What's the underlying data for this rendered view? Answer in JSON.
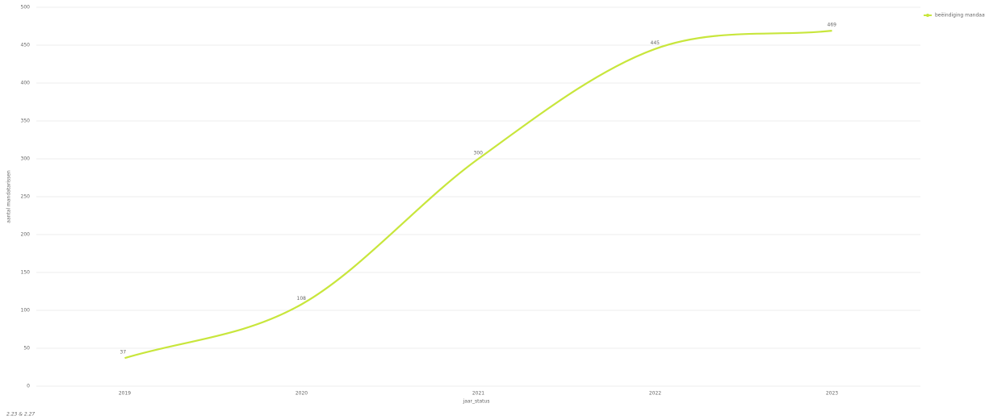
{
  "chart_data": {
    "type": "line",
    "x_label": "jaar_status",
    "y_label": "aantal mandatarissen",
    "categories": [
      "2019",
      "2020",
      "2021",
      "2022",
      "2023"
    ],
    "series": [
      {
        "name": "beëindiging mandaat",
        "color": "#c8e63c",
        "values": [
          37,
          108,
          300,
          445,
          469
        ]
      }
    ],
    "ylim": [
      0,
      500
    ],
    "yticks": [
      0,
      50,
      100,
      150,
      200,
      250,
      300,
      350,
      400,
      450,
      500
    ],
    "grid": true,
    "legend": "top-right",
    "data_labels": true,
    "footnote": "2.23 & 2.27"
  }
}
